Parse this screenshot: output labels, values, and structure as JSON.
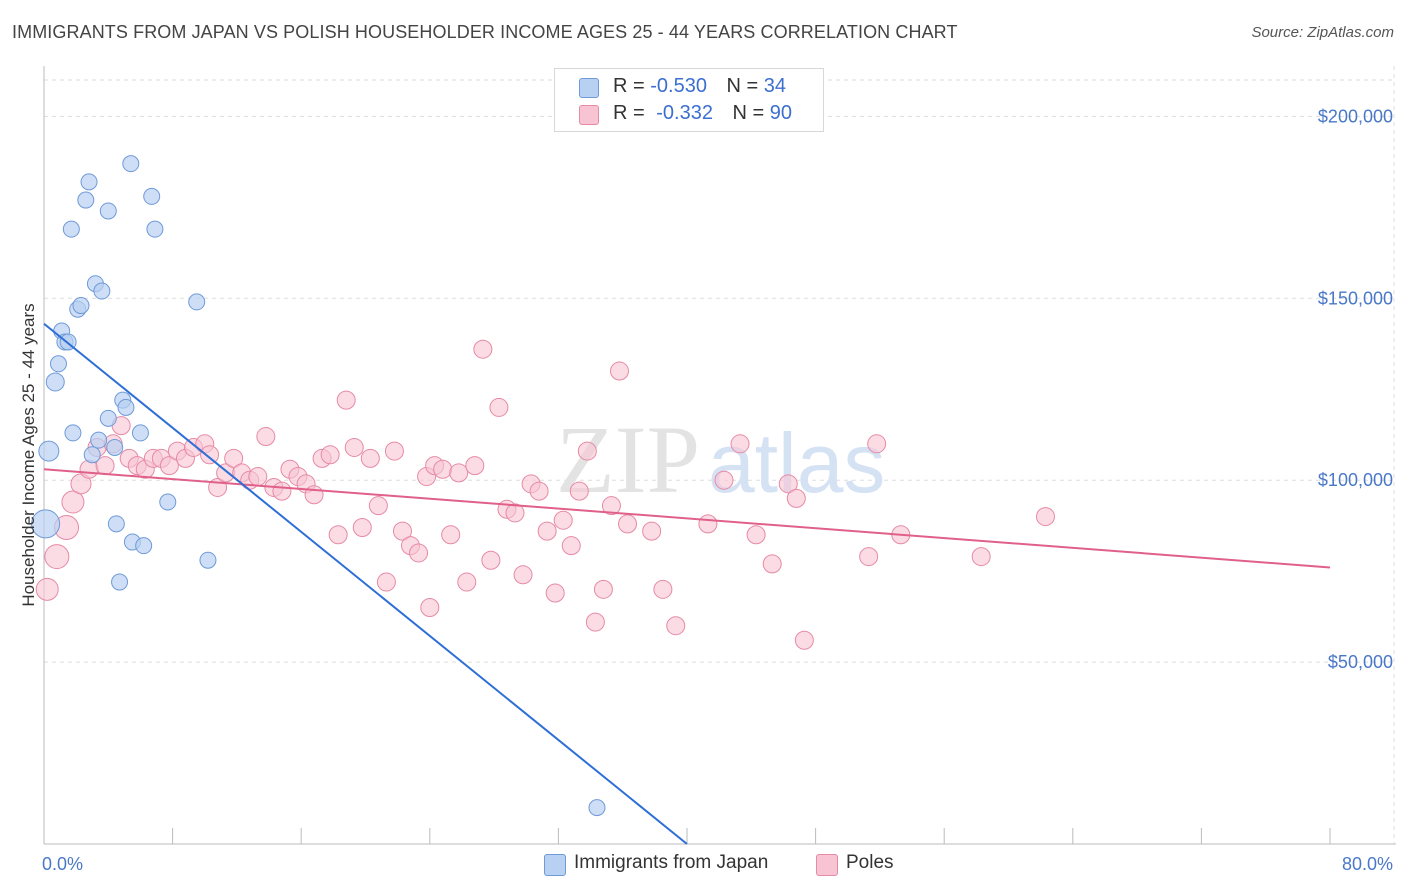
{
  "title": "IMMIGRANTS FROM JAPAN VS POLISH HOUSEHOLDER INCOME AGES 25 - 44 YEARS CORRELATION CHART",
  "source": "Source: ZipAtlas.com",
  "watermark": {
    "zip": "ZIP",
    "atlas": "atlas"
  },
  "legend": {
    "rows": [
      {
        "r_label": "R =",
        "r_value": "-0.530",
        "n_label": "N =",
        "n_value": "34"
      },
      {
        "r_label": "R =",
        "r_value": "-0.332",
        "n_label": "N =",
        "n_value": "90"
      }
    ]
  },
  "bottom_legend": [
    "Immigrants from Japan",
    "Poles"
  ],
  "colors": {
    "japan_fill": "#b8d0f2",
    "japan_stroke": "#6f9ad8",
    "japan_line": "#2e6fd6",
    "poles_fill": "#f8c4d4",
    "poles_stroke": "#e68aa6",
    "poles_line": "#e0608a",
    "tick": "#4a78c8",
    "grid": "#dddddd"
  },
  "chart_data": {
    "type": "scatter",
    "title": "IMMIGRANTS FROM JAPAN VS POLISH HOUSEHOLDER INCOME AGES 25 - 44 YEARS CORRELATION CHART",
    "ylabel": "Householder Income Ages 25 - 44 years",
    "xlabel": "",
    "xlim": [
      0,
      80
    ],
    "ylim": [
      0,
      210000
    ],
    "x_tick_labels": [
      "0.0%",
      "80.0%"
    ],
    "y_ticks": [
      {
        "value": 50000,
        "label": "$50,000"
      },
      {
        "value": 100000,
        "label": "$100,000"
      },
      {
        "value": 150000,
        "label": "$150,000"
      },
      {
        "value": 200000,
        "label": "$200,000"
      }
    ],
    "series": [
      {
        "name": "Immigrants from Japan",
        "R": -0.53,
        "N": 34,
        "trend": {
          "x0": 0.0,
          "y0": 143000,
          "x1": 40.0,
          "y1": 0
        },
        "points": [
          [
            0.1,
            88000,
            14
          ],
          [
            0.3,
            108000,
            10
          ],
          [
            0.7,
            127000,
            9
          ],
          [
            0.9,
            132000,
            8
          ],
          [
            1.1,
            141000,
            8
          ],
          [
            1.3,
            138000,
            8
          ],
          [
            1.5,
            138000,
            8
          ],
          [
            1.8,
            113000,
            8
          ],
          [
            1.7,
            169000,
            8
          ],
          [
            2.1,
            147000,
            8
          ],
          [
            2.3,
            148000,
            8
          ],
          [
            2.6,
            177000,
            8
          ],
          [
            2.8,
            182000,
            8
          ],
          [
            3.2,
            154000,
            8
          ],
          [
            3.0,
            107000,
            8
          ],
          [
            3.4,
            111000,
            8
          ],
          [
            3.6,
            152000,
            8
          ],
          [
            4.0,
            174000,
            8
          ],
          [
            4.0,
            117000,
            8
          ],
          [
            4.4,
            109000,
            8
          ],
          [
            4.5,
            88000,
            8
          ],
          [
            4.7,
            72000,
            8
          ],
          [
            4.9,
            122000,
            8
          ],
          [
            5.1,
            120000,
            8
          ],
          [
            5.4,
            187000,
            8
          ],
          [
            5.5,
            83000,
            8
          ],
          [
            6.0,
            113000,
            8
          ],
          [
            6.2,
            82000,
            8
          ],
          [
            6.7,
            178000,
            8
          ],
          [
            6.9,
            169000,
            8
          ],
          [
            7.7,
            94000,
            8
          ],
          [
            9.5,
            149000,
            8
          ],
          [
            10.2,
            78000,
            8
          ],
          [
            34.4,
            10000,
            8
          ]
        ]
      },
      {
        "name": "Poles",
        "R": -0.332,
        "N": 90,
        "trend": {
          "x0": 0.0,
          "y0": 103000,
          "x1": 80.0,
          "y1": 76000
        },
        "points": [
          [
            0.2,
            70000,
            11
          ],
          [
            0.8,
            79000,
            12
          ],
          [
            1.4,
            87000,
            12
          ],
          [
            1.8,
            94000,
            11
          ],
          [
            2.3,
            99000,
            10
          ],
          [
            2.8,
            103000,
            9
          ],
          [
            3.3,
            109000,
            9
          ],
          [
            3.8,
            104000,
            9
          ],
          [
            4.3,
            110000,
            9
          ],
          [
            4.8,
            115000,
            9
          ],
          [
            5.3,
            106000,
            9
          ],
          [
            5.8,
            104000,
            9
          ],
          [
            6.3,
            103000,
            9
          ],
          [
            6.8,
            106000,
            9
          ],
          [
            7.3,
            106000,
            9
          ],
          [
            7.8,
            104000,
            9
          ],
          [
            8.3,
            108000,
            9
          ],
          [
            8.8,
            106000,
            9
          ],
          [
            9.3,
            109000,
            9
          ],
          [
            10.0,
            110000,
            9
          ],
          [
            10.3,
            107000,
            9
          ],
          [
            10.8,
            98000,
            9
          ],
          [
            11.3,
            102000,
            9
          ],
          [
            11.8,
            106000,
            9
          ],
          [
            12.3,
            102000,
            9
          ],
          [
            12.8,
            100000,
            9
          ],
          [
            13.3,
            101000,
            9
          ],
          [
            13.8,
            112000,
            9
          ],
          [
            14.3,
            98000,
            9
          ],
          [
            14.8,
            97000,
            9
          ],
          [
            15.3,
            103000,
            9
          ],
          [
            15.8,
            101000,
            9
          ],
          [
            16.3,
            99000,
            9
          ],
          [
            16.8,
            96000,
            9
          ],
          [
            17.3,
            106000,
            9
          ],
          [
            17.8,
            107000,
            9
          ],
          [
            18.3,
            85000,
            9
          ],
          [
            18.8,
            122000,
            9
          ],
          [
            19.3,
            109000,
            9
          ],
          [
            19.8,
            87000,
            9
          ],
          [
            20.3,
            106000,
            9
          ],
          [
            20.8,
            93000,
            9
          ],
          [
            21.3,
            72000,
            9
          ],
          [
            21.8,
            108000,
            9
          ],
          [
            22.3,
            86000,
            9
          ],
          [
            22.8,
            82000,
            9
          ],
          [
            23.3,
            80000,
            9
          ],
          [
            23.8,
            101000,
            9
          ],
          [
            24.3,
            104000,
            9
          ],
          [
            24.8,
            103000,
            9
          ],
          [
            25.3,
            85000,
            9
          ],
          [
            25.8,
            102000,
            9
          ],
          [
            26.3,
            72000,
            9
          ],
          [
            26.8,
            104000,
            9
          ],
          [
            27.3,
            136000,
            9
          ],
          [
            27.8,
            78000,
            9
          ],
          [
            28.3,
            120000,
            9
          ],
          [
            28.8,
            92000,
            9
          ],
          [
            29.3,
            91000,
            9
          ],
          [
            29.8,
            74000,
            9
          ],
          [
            30.3,
            99000,
            9
          ],
          [
            30.8,
            97000,
            9
          ],
          [
            31.3,
            86000,
            9
          ],
          [
            31.8,
            69000,
            9
          ],
          [
            32.3,
            89000,
            9
          ],
          [
            32.8,
            82000,
            9
          ],
          [
            33.3,
            97000,
            9
          ],
          [
            33.8,
            108000,
            9
          ],
          [
            34.3,
            61000,
            9
          ],
          [
            34.8,
            70000,
            9
          ],
          [
            35.3,
            93000,
            9
          ],
          [
            35.8,
            130000,
            9
          ],
          [
            36.3,
            88000,
            9
          ],
          [
            37.8,
            86000,
            9
          ],
          [
            39.3,
            60000,
            9
          ],
          [
            41.3,
            88000,
            9
          ],
          [
            42.3,
            100000,
            9
          ],
          [
            43.3,
            110000,
            9
          ],
          [
            44.3,
            85000,
            9
          ],
          [
            45.3,
            77000,
            9
          ],
          [
            46.3,
            99000,
            9
          ],
          [
            46.8,
            95000,
            9
          ],
          [
            47.3,
            56000,
            9
          ],
          [
            51.3,
            79000,
            9
          ],
          [
            51.8,
            110000,
            9
          ],
          [
            53.3,
            85000,
            9
          ],
          [
            58.3,
            79000,
            9
          ],
          [
            62.3,
            90000,
            9
          ],
          [
            24.0,
            65000,
            9
          ],
          [
            38.5,
            70000,
            9
          ]
        ]
      }
    ]
  }
}
